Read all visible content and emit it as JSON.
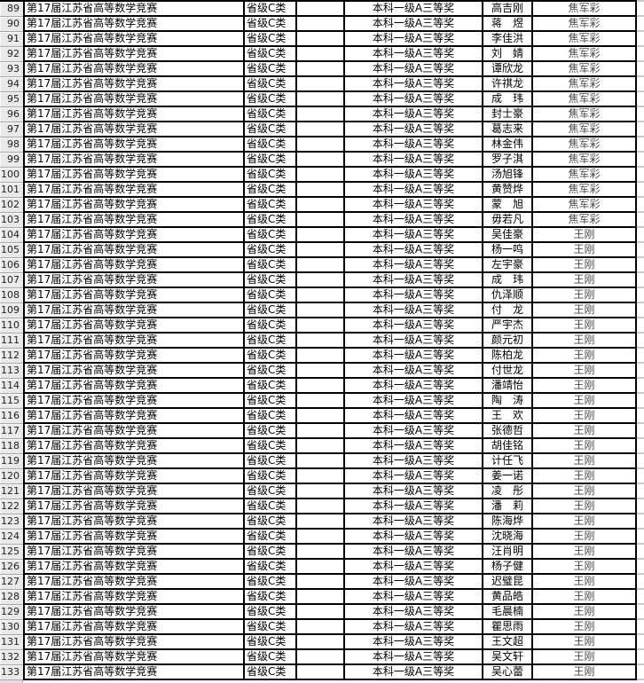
{
  "app": "spreadsheet-award-list",
  "colors": {
    "grid_border": "#000000",
    "row_header_bg": "#e9e9e9",
    "advisor_text": "#4a4a4a",
    "cell_bg": "#ffffff"
  },
  "table": {
    "competition": "第17届江苏省高等数学竞赛",
    "level": "省级C类",
    "award": "本科一级A三等奖",
    "rows": [
      {
        "num": "89",
        "name": "高吉刚",
        "advisor": "焦军彩"
      },
      {
        "num": "90",
        "name": "蒋　煜",
        "advisor": "焦军彩"
      },
      {
        "num": "91",
        "name": "李佳洪",
        "advisor": "焦军彩"
      },
      {
        "num": "92",
        "name": "刘　婧",
        "advisor": "焦军彩"
      },
      {
        "num": "93",
        "name": "谭欣龙",
        "advisor": "焦军彩"
      },
      {
        "num": "94",
        "name": "许祺龙",
        "advisor": "焦军彩"
      },
      {
        "num": "95",
        "name": "成　玮",
        "advisor": "焦军彩"
      },
      {
        "num": "96",
        "name": "封士豪",
        "advisor": "焦军彩"
      },
      {
        "num": "97",
        "name": "葛志来",
        "advisor": "焦军彩"
      },
      {
        "num": "98",
        "name": "林金伟",
        "advisor": "焦军彩"
      },
      {
        "num": "99",
        "name": "罗子淇",
        "advisor": "焦军彩"
      },
      {
        "num": "100",
        "name": "汤旭锋",
        "advisor": "焦军彩"
      },
      {
        "num": "101",
        "name": "黄赞烨",
        "advisor": "焦军彩"
      },
      {
        "num": "102",
        "name": "蒙　旭",
        "advisor": "焦军彩"
      },
      {
        "num": "103",
        "name": "毋若凡",
        "advisor": "焦军彩"
      },
      {
        "num": "104",
        "name": "吴佳豪",
        "advisor": "王刚"
      },
      {
        "num": "105",
        "name": "杨一鸣",
        "advisor": "王刚"
      },
      {
        "num": "106",
        "name": "左宇豪",
        "advisor": "王刚"
      },
      {
        "num": "107",
        "name": "成　玮",
        "advisor": "王刚"
      },
      {
        "num": "108",
        "name": "仇泽顺",
        "advisor": "王刚"
      },
      {
        "num": "109",
        "name": "付　龙",
        "advisor": "王刚"
      },
      {
        "num": "110",
        "name": "严宇杰",
        "advisor": "王刚"
      },
      {
        "num": "111",
        "name": "颜元初",
        "advisor": "王刚"
      },
      {
        "num": "112",
        "name": "陈柏龙",
        "advisor": "王刚"
      },
      {
        "num": "113",
        "name": "付世龙",
        "advisor": "王刚"
      },
      {
        "num": "114",
        "name": "潘靖怡",
        "advisor": "王刚"
      },
      {
        "num": "115",
        "name": "陶　涛",
        "advisor": "王刚"
      },
      {
        "num": "116",
        "name": "王　欢",
        "advisor": "王刚"
      },
      {
        "num": "117",
        "name": "张德哲",
        "advisor": "王刚"
      },
      {
        "num": "118",
        "name": "胡佳铭",
        "advisor": "王刚"
      },
      {
        "num": "119",
        "name": "计任飞",
        "advisor": "王刚"
      },
      {
        "num": "120",
        "name": "姜一诺",
        "advisor": "王刚"
      },
      {
        "num": "121",
        "name": "凌　彤",
        "advisor": "王刚"
      },
      {
        "num": "122",
        "name": "潘　莉",
        "advisor": "王刚"
      },
      {
        "num": "123",
        "name": "陈海烨",
        "advisor": "王刚"
      },
      {
        "num": "124",
        "name": "沈晓海",
        "advisor": "王刚"
      },
      {
        "num": "125",
        "name": "汪肖明",
        "advisor": "王刚"
      },
      {
        "num": "126",
        "name": "杨子健",
        "advisor": "王刚"
      },
      {
        "num": "127",
        "name": "迟璧昆",
        "advisor": "王刚"
      },
      {
        "num": "128",
        "name": "黄品皓",
        "advisor": "王刚"
      },
      {
        "num": "129",
        "name": "毛晨楠",
        "advisor": "王刚"
      },
      {
        "num": "130",
        "name": "瞿思雨",
        "advisor": "王刚"
      },
      {
        "num": "131",
        "name": "王文超",
        "advisor": "王刚"
      },
      {
        "num": "132",
        "name": "吴文轩",
        "advisor": "王刚"
      },
      {
        "num": "133",
        "name": "吴心蕾",
        "advisor": "王刚"
      }
    ]
  }
}
